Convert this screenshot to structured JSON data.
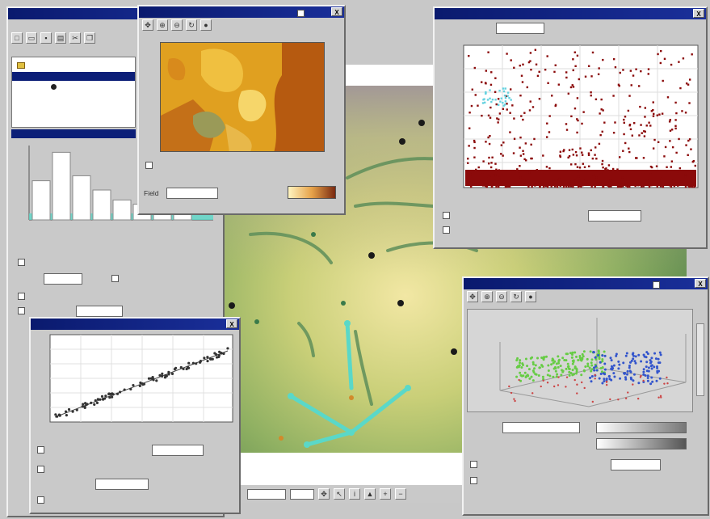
{
  "map_view": {
    "name": "terrain-map"
  },
  "main_window": {
    "title": "",
    "menu": [
      "",
      "",
      "",
      "",
      ""
    ],
    "tree_items": [
      "",
      "",
      ""
    ],
    "histogram_values": [
      0.55,
      0.95,
      0.62,
      0.42,
      0.28,
      0.22,
      0.16,
      0.12
    ]
  },
  "raster_window": {
    "title": "",
    "close": "X",
    "color_ramp_label": "",
    "field_value": ""
  },
  "scatter_window": {
    "title": "",
    "close": "X"
  },
  "regression_window": {
    "title": "",
    "close": "X"
  },
  "plot3d_window": {
    "title": "",
    "close": "X"
  },
  "colors": {
    "title_bar": "#0a1a6e",
    "window_bg": "#c9c9c9",
    "scatter_points": "#8b0a0a",
    "stream_lines": "#5ad8c8",
    "cloud_green": "#66cc44",
    "cloud_blue": "#3355cc"
  }
}
